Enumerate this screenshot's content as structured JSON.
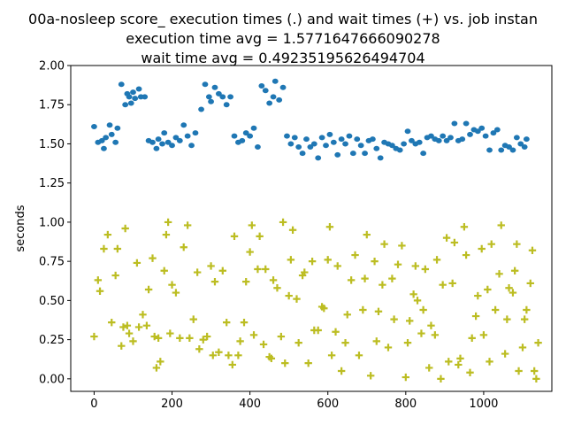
{
  "chart_data": {
    "type": "scatter",
    "title_lines": [
      "00a-nosleep score_ execution times (.) and wait times (+) vs. job instan",
      "execution time avg = 1.5771647666090278",
      "wait time avg = 0.49235195626494704"
    ],
    "xlabel": "",
    "ylabel": "seconds",
    "xlim": [
      -60,
      1175
    ],
    "ylim": [
      -0.08,
      2.0
    ],
    "xticks": [
      0,
      200,
      400,
      600,
      800,
      1000
    ],
    "yticks": [
      0.0,
      0.25,
      0.5,
      0.75,
      1.0,
      1.25,
      1.5,
      1.75,
      2.0
    ],
    "ytick_labels": [
      "0.00",
      "0.25",
      "0.50",
      "0.75",
      "1.00",
      "1.25",
      "1.50",
      "1.75",
      "2.00"
    ],
    "grid": false,
    "series": [
      {
        "marker": "dot",
        "color": "#1f77b4",
        "points": [
          [
            0,
            1.61
          ],
          [
            10,
            1.51
          ],
          [
            20,
            1.52
          ],
          [
            25,
            1.47
          ],
          [
            30,
            1.54
          ],
          [
            40,
            1.62
          ],
          [
            45,
            1.56
          ],
          [
            55,
            1.51
          ],
          [
            60,
            1.6
          ],
          [
            70,
            1.88
          ],
          [
            80,
            1.75
          ],
          [
            85,
            1.82
          ],
          [
            90,
            1.8
          ],
          [
            95,
            1.76
          ],
          [
            100,
            1.83
          ],
          [
            105,
            1.79
          ],
          [
            115,
            1.85
          ],
          [
            120,
            1.8
          ],
          [
            130,
            1.8
          ],
          [
            140,
            1.52
          ],
          [
            150,
            1.51
          ],
          [
            160,
            1.47
          ],
          [
            165,
            1.53
          ],
          [
            175,
            1.5
          ],
          [
            180,
            1.57
          ],
          [
            190,
            1.51
          ],
          [
            200,
            1.49
          ],
          [
            210,
            1.54
          ],
          [
            220,
            1.52
          ],
          [
            230,
            1.62
          ],
          [
            240,
            1.55
          ],
          [
            250,
            1.49
          ],
          [
            260,
            1.57
          ],
          [
            275,
            1.72
          ],
          [
            285,
            1.88
          ],
          [
            295,
            1.8
          ],
          [
            300,
            1.77
          ],
          [
            310,
            1.86
          ],
          [
            320,
            1.82
          ],
          [
            330,
            1.8
          ],
          [
            340,
            1.75
          ],
          [
            350,
            1.8
          ],
          [
            360,
            1.55
          ],
          [
            370,
            1.51
          ],
          [
            380,
            1.52
          ],
          [
            390,
            1.57
          ],
          [
            400,
            1.55
          ],
          [
            410,
            1.6
          ],
          [
            420,
            1.48
          ],
          [
            430,
            1.87
          ],
          [
            440,
            1.84
          ],
          [
            450,
            1.76
          ],
          [
            460,
            1.8
          ],
          [
            465,
            1.9
          ],
          [
            475,
            1.78
          ],
          [
            485,
            1.86
          ],
          [
            495,
            1.55
          ],
          [
            505,
            1.5
          ],
          [
            515,
            1.54
          ],
          [
            525,
            1.48
          ],
          [
            535,
            1.44
          ],
          [
            545,
            1.53
          ],
          [
            555,
            1.48
          ],
          [
            565,
            1.5
          ],
          [
            575,
            1.41
          ],
          [
            585,
            1.54
          ],
          [
            595,
            1.49
          ],
          [
            605,
            1.56
          ],
          [
            615,
            1.51
          ],
          [
            625,
            1.43
          ],
          [
            635,
            1.53
          ],
          [
            645,
            1.5
          ],
          [
            655,
            1.55
          ],
          [
            665,
            1.44
          ],
          [
            675,
            1.53
          ],
          [
            685,
            1.49
          ],
          [
            695,
            1.44
          ],
          [
            705,
            1.52
          ],
          [
            715,
            1.53
          ],
          [
            725,
            1.47
          ],
          [
            735,
            1.41
          ],
          [
            745,
            1.51
          ],
          [
            755,
            1.5
          ],
          [
            765,
            1.49
          ],
          [
            775,
            1.47
          ],
          [
            785,
            1.46
          ],
          [
            795,
            1.5
          ],
          [
            805,
            1.58
          ],
          [
            815,
            1.52
          ],
          [
            825,
            1.5
          ],
          [
            835,
            1.51
          ],
          [
            845,
            1.44
          ],
          [
            855,
            1.54
          ],
          [
            865,
            1.55
          ],
          [
            875,
            1.53
          ],
          [
            885,
            1.52
          ],
          [
            895,
            1.55
          ],
          [
            905,
            1.52
          ],
          [
            915,
            1.54
          ],
          [
            925,
            1.63
          ],
          [
            935,
            1.52
          ],
          [
            945,
            1.53
          ],
          [
            955,
            1.63
          ],
          [
            965,
            1.56
          ],
          [
            975,
            1.59
          ],
          [
            985,
            1.58
          ],
          [
            995,
            1.6
          ],
          [
            1005,
            1.55
          ],
          [
            1015,
            1.46
          ],
          [
            1025,
            1.57
          ],
          [
            1035,
            1.59
          ],
          [
            1045,
            1.46
          ],
          [
            1055,
            1.49
          ],
          [
            1065,
            1.48
          ],
          [
            1075,
            1.46
          ],
          [
            1085,
            1.54
          ],
          [
            1095,
            1.5
          ],
          [
            1105,
            1.48
          ],
          [
            1110,
            1.53
          ]
        ]
      },
      {
        "marker": "plus",
        "color": "#bcbd22",
        "points": [
          [
            0,
            0.27
          ],
          [
            10,
            0.63
          ],
          [
            15,
            0.56
          ],
          [
            25,
            0.83
          ],
          [
            35,
            0.92
          ],
          [
            45,
            0.36
          ],
          [
            55,
            0.66
          ],
          [
            60,
            0.83
          ],
          [
            70,
            0.21
          ],
          [
            75,
            0.33
          ],
          [
            80,
            0.96
          ],
          [
            85,
            0.34
          ],
          [
            90,
            0.29
          ],
          [
            100,
            0.24
          ],
          [
            110,
            0.74
          ],
          [
            115,
            0.33
          ],
          [
            125,
            0.41
          ],
          [
            135,
            0.34
          ],
          [
            140,
            0.57
          ],
          [
            150,
            0.77
          ],
          [
            155,
            0.27
          ],
          [
            160,
            0.07
          ],
          [
            165,
            0.26
          ],
          [
            170,
            0.11
          ],
          [
            180,
            0.69
          ],
          [
            185,
            0.92
          ],
          [
            190,
            1.0
          ],
          [
            195,
            0.29
          ],
          [
            200,
            0.6
          ],
          [
            210,
            0.55
          ],
          [
            220,
            0.26
          ],
          [
            230,
            0.84
          ],
          [
            240,
            0.98
          ],
          [
            245,
            0.26
          ],
          [
            255,
            0.38
          ],
          [
            265,
            0.68
          ],
          [
            270,
            0.19
          ],
          [
            280,
            0.25
          ],
          [
            290,
            0.27
          ],
          [
            300,
            0.72
          ],
          [
            305,
            0.15
          ],
          [
            310,
            0.62
          ],
          [
            320,
            0.17
          ],
          [
            330,
            0.69
          ],
          [
            340,
            0.36
          ],
          [
            345,
            0.15
          ],
          [
            355,
            0.09
          ],
          [
            360,
            0.91
          ],
          [
            370,
            0.15
          ],
          [
            375,
            0.24
          ],
          [
            385,
            0.36
          ],
          [
            390,
            0.62
          ],
          [
            400,
            0.81
          ],
          [
            405,
            0.98
          ],
          [
            410,
            0.28
          ],
          [
            420,
            0.7
          ],
          [
            425,
            0.91
          ],
          [
            435,
            0.22
          ],
          [
            440,
            0.7
          ],
          [
            450,
            0.14
          ],
          [
            455,
            0.13
          ],
          [
            460,
            0.63
          ],
          [
            470,
            0.58
          ],
          [
            480,
            0.27
          ],
          [
            485,
            1.0
          ],
          [
            490,
            0.1
          ],
          [
            500,
            0.53
          ],
          [
            505,
            0.76
          ],
          [
            510,
            0.95
          ],
          [
            520,
            0.51
          ],
          [
            525,
            0.23
          ],
          [
            535,
            0.66
          ],
          [
            540,
            0.68
          ],
          [
            550,
            0.1
          ],
          [
            560,
            0.75
          ],
          [
            565,
            0.31
          ],
          [
            575,
            0.31
          ],
          [
            585,
            0.46
          ],
          [
            590,
            0.45
          ],
          [
            600,
            0.76
          ],
          [
            605,
            0.97
          ],
          [
            610,
            0.15
          ],
          [
            620,
            0.3
          ],
          [
            625,
            0.72
          ],
          [
            635,
            0.05
          ],
          [
            645,
            0.23
          ],
          [
            650,
            0.41
          ],
          [
            660,
            0.63
          ],
          [
            670,
            0.79
          ],
          [
            680,
            0.15
          ],
          [
            690,
            0.44
          ],
          [
            695,
            0.64
          ],
          [
            700,
            0.92
          ],
          [
            710,
            0.02
          ],
          [
            720,
            0.75
          ],
          [
            725,
            0.24
          ],
          [
            730,
            0.43
          ],
          [
            740,
            0.6
          ],
          [
            745,
            0.86
          ],
          [
            755,
            0.2
          ],
          [
            765,
            0.64
          ],
          [
            770,
            0.38
          ],
          [
            780,
            0.73
          ],
          [
            790,
            0.85
          ],
          [
            800,
            0.01
          ],
          [
            805,
            0.23
          ],
          [
            810,
            0.37
          ],
          [
            820,
            0.54
          ],
          [
            825,
            0.72
          ],
          [
            830,
            0.5
          ],
          [
            840,
            0.29
          ],
          [
            845,
            0.44
          ],
          [
            850,
            0.7
          ],
          [
            860,
            0.07
          ],
          [
            865,
            0.34
          ],
          [
            875,
            0.28
          ],
          [
            880,
            0.76
          ],
          [
            890,
            0.0
          ],
          [
            895,
            0.6
          ],
          [
            905,
            0.9
          ],
          [
            910,
            0.11
          ],
          [
            920,
            0.61
          ],
          [
            925,
            0.87
          ],
          [
            935,
            0.09
          ],
          [
            940,
            0.13
          ],
          [
            950,
            0.97
          ],
          [
            955,
            0.79
          ],
          [
            965,
            0.04
          ],
          [
            970,
            0.26
          ],
          [
            980,
            0.4
          ],
          [
            985,
            0.53
          ],
          [
            995,
            0.83
          ],
          [
            1000,
            0.28
          ],
          [
            1010,
            0.57
          ],
          [
            1015,
            0.11
          ],
          [
            1020,
            0.86
          ],
          [
            1030,
            0.44
          ],
          [
            1040,
            0.67
          ],
          [
            1045,
            0.98
          ],
          [
            1055,
            0.16
          ],
          [
            1060,
            0.38
          ],
          [
            1065,
            0.58
          ],
          [
            1075,
            0.55
          ],
          [
            1080,
            0.69
          ],
          [
            1085,
            0.86
          ],
          [
            1090,
            0.05
          ],
          [
            1100,
            0.2
          ],
          [
            1105,
            0.38
          ],
          [
            1110,
            0.44
          ],
          [
            1120,
            0.61
          ],
          [
            1125,
            0.82
          ],
          [
            1130,
            0.05
          ],
          [
            1135,
            0.0
          ],
          [
            1140,
            0.23
          ]
        ]
      }
    ]
  }
}
